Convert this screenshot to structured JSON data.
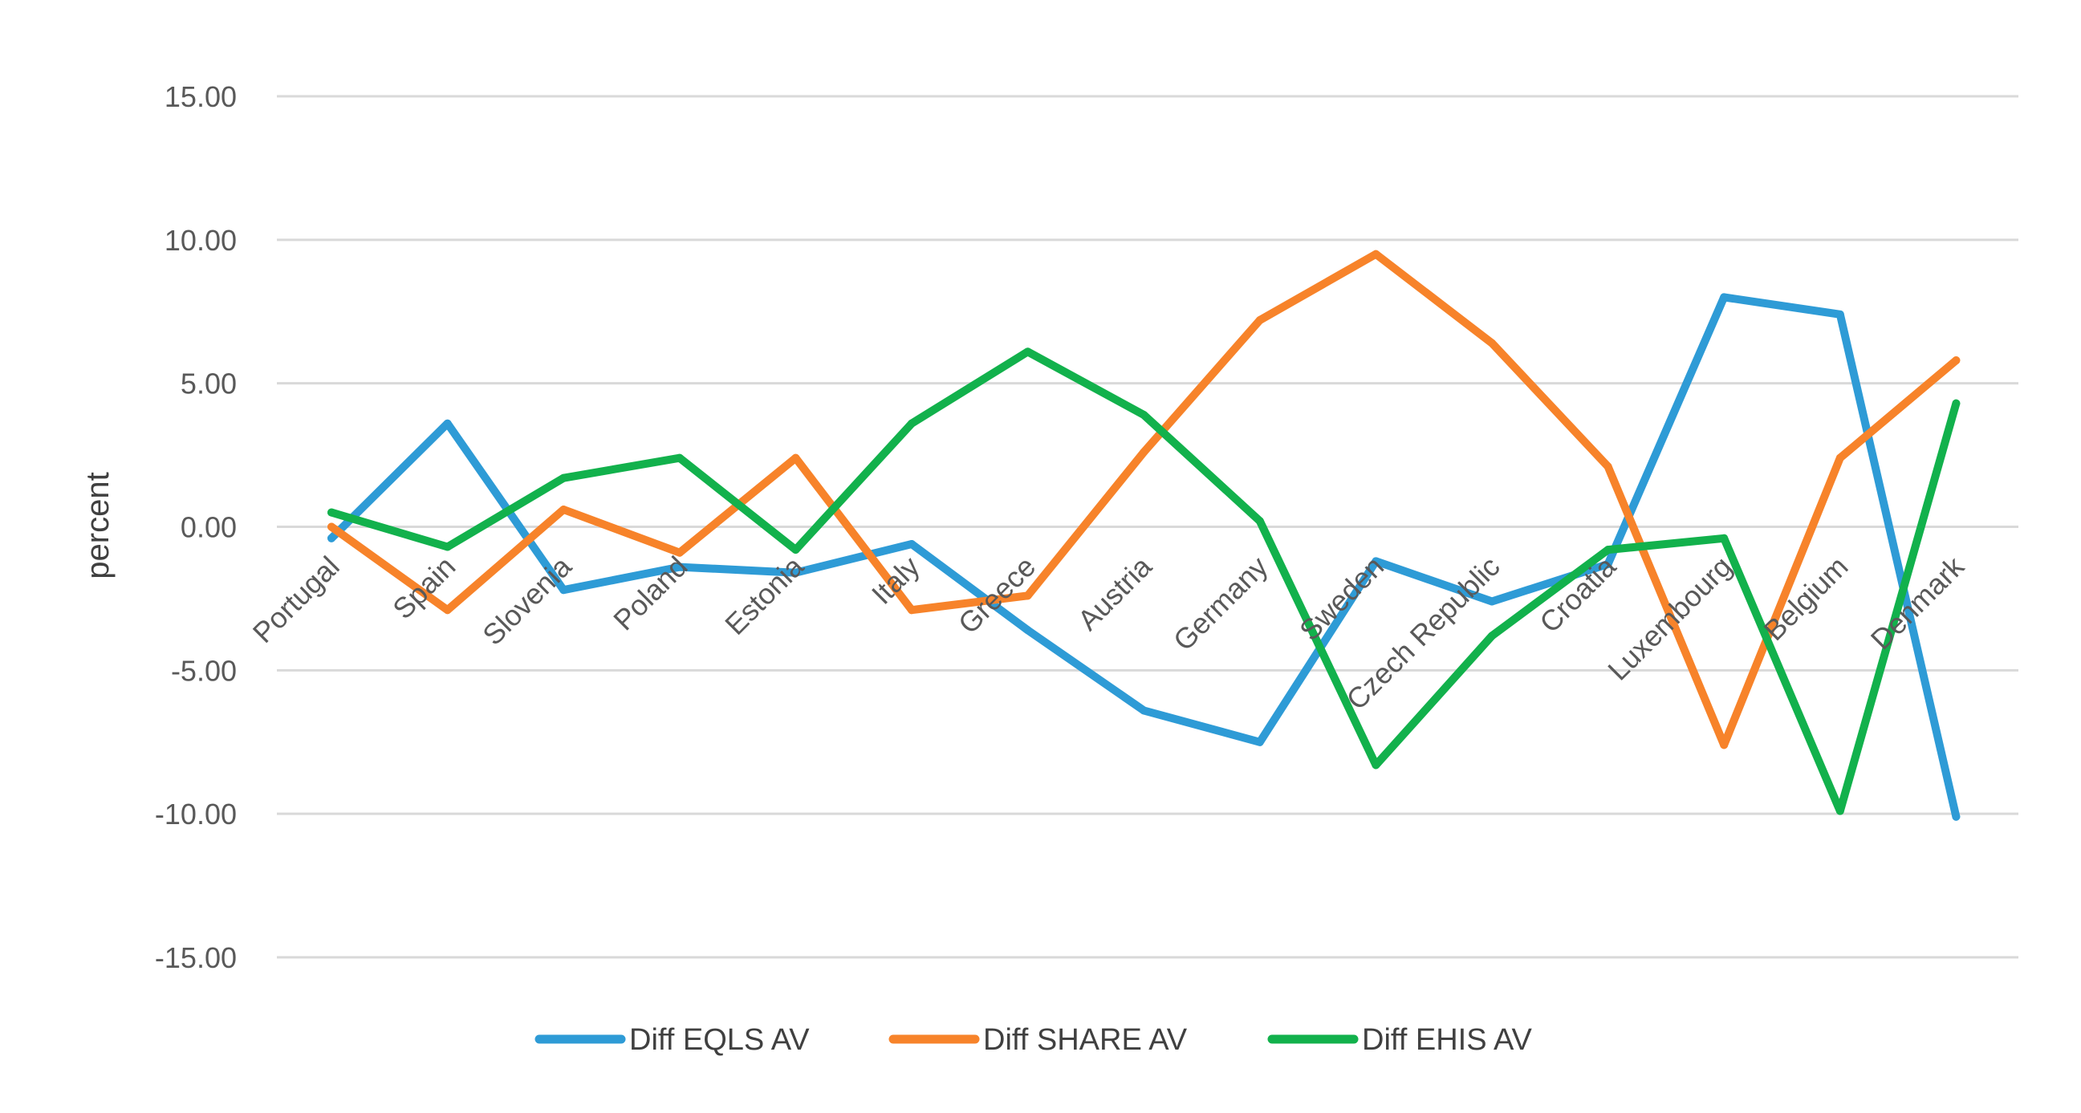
{
  "chart_data": {
    "type": "line",
    "title": "",
    "xlabel": "",
    "ylabel": "percent",
    "ylim": [
      -15,
      15
    ],
    "yticks": [
      15,
      10,
      5,
      0,
      -5,
      -10,
      -15
    ],
    "ytick_labels": [
      "15.00",
      "10.00",
      "5.00",
      "0.00",
      "-5.00",
      "-10.00",
      "-15.00"
    ],
    "grid": true,
    "legend_position": "bottom",
    "categories": [
      "Portugal",
      "Spain",
      "Slovenia",
      "Poland",
      "Estonia",
      "Italy",
      "Greece",
      "Austria",
      "Germany",
      "Sweden",
      "Czech Republic",
      "Croatia",
      "Luxembourg",
      "Belgium",
      "Denmark"
    ],
    "series": [
      {
        "name": "Diff EQLS AV",
        "color": "#2e9bd6",
        "values": [
          -0.4,
          3.6,
          -2.2,
          -1.4,
          -1.6,
          -0.6,
          -3.6,
          -6.4,
          -7.5,
          -1.2,
          -2.6,
          -1.3,
          8.0,
          7.4,
          -10.1
        ]
      },
      {
        "name": "Diff SHARE AV",
        "color": "#f7832a",
        "values": [
          0.0,
          -2.9,
          0.6,
          -0.9,
          2.4,
          -2.9,
          -2.4,
          2.6,
          7.2,
          9.5,
          6.4,
          2.1,
          -7.6,
          2.4,
          5.8
        ]
      },
      {
        "name": "Diff EHIS AV",
        "color": "#12b14c",
        "values": [
          0.5,
          -0.7,
          1.7,
          2.4,
          -0.8,
          3.6,
          6.1,
          3.9,
          0.2,
          -8.3,
          -3.8,
          -0.8,
          -0.4,
          -9.9,
          4.3
        ]
      }
    ]
  }
}
